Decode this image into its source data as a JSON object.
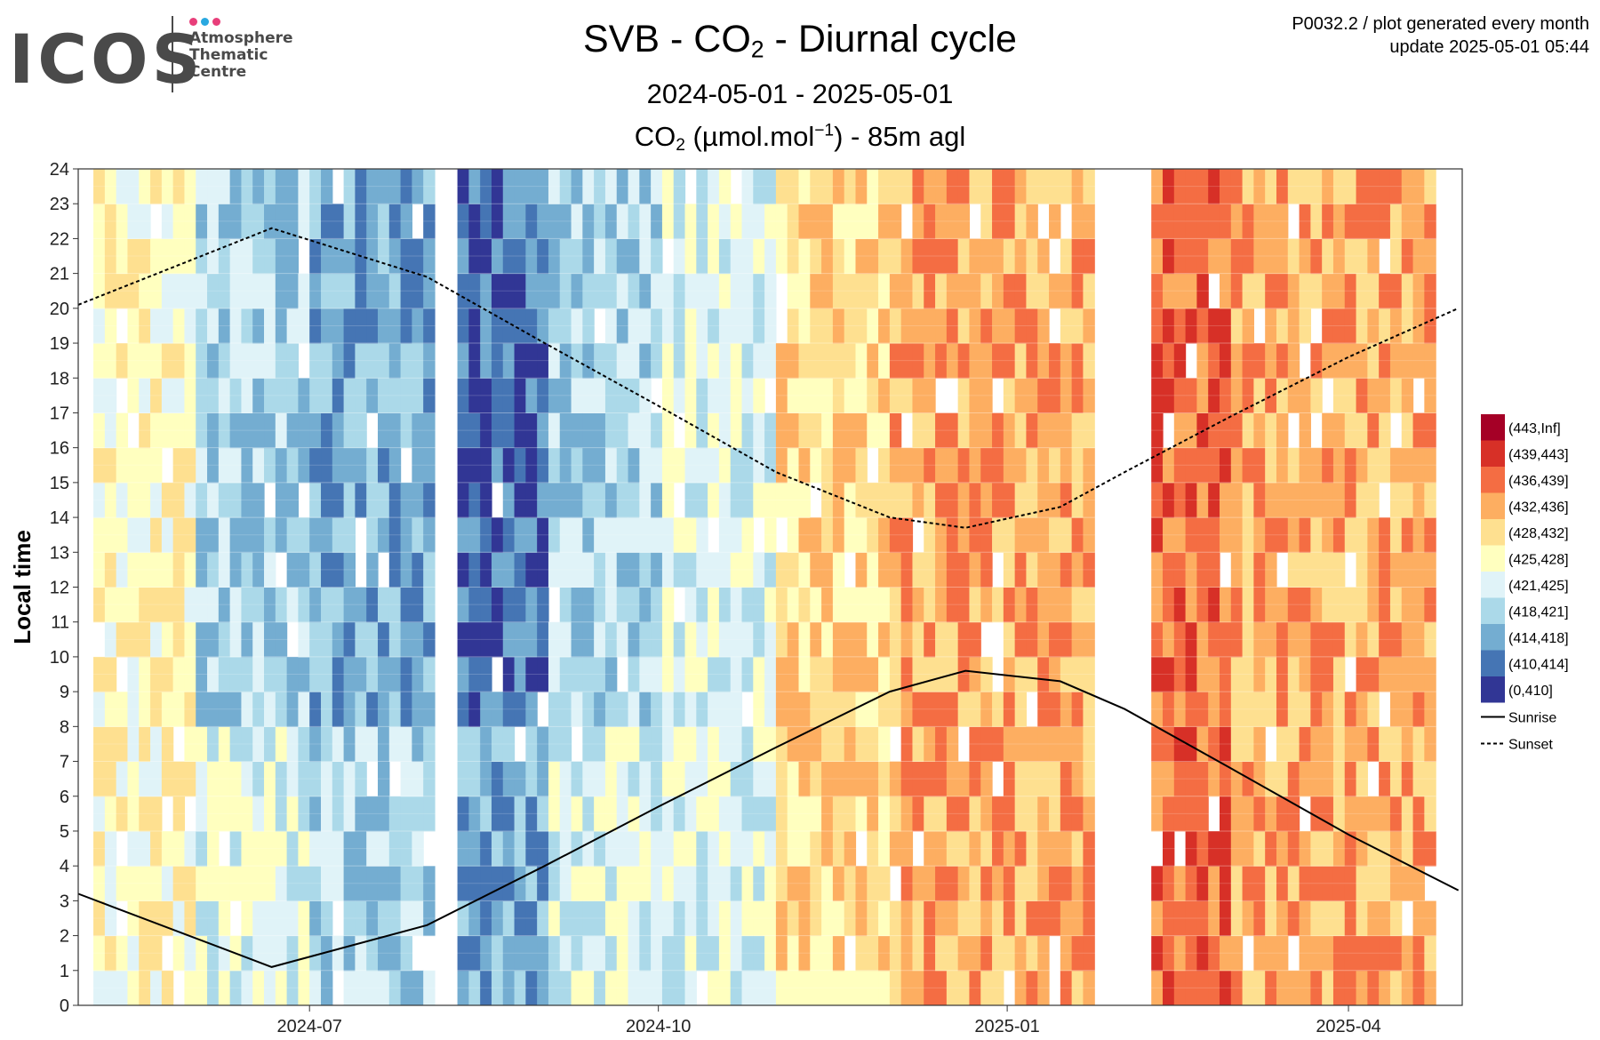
{
  "logo": {
    "word": "ICOS",
    "sub_lines": [
      "Atmosphere",
      "Thematic",
      "Centre"
    ],
    "dot_colors": [
      "#e83e7a",
      "#29a8e0",
      "#e83e7a"
    ]
  },
  "header": {
    "title_pre": "SVB - CO",
    "title_sub": "2",
    "title_post": " - Diurnal cycle",
    "date_range": "2024-05-01 - 2025-05-01",
    "series_pre": "CO",
    "series_sub": "2",
    "series_mid": " (µmol.mol",
    "series_sup": "−1",
    "series_post": ") - 85m agl",
    "meta_line1": "P0032.2 / plot generated every month",
    "meta_line2": "update  2025-05-01 05:44"
  },
  "chart_data": {
    "type": "heatmap",
    "ylabel": "Local time",
    "x_ticks": [
      "2024-07",
      "2024-10",
      "2025-01",
      "2025-04"
    ],
    "xlim": [
      "2024-05-01",
      "2025-05-01"
    ],
    "y_ticks": [
      "0",
      "1",
      "2",
      "3",
      "4",
      "5",
      "6",
      "7",
      "8",
      "9",
      "10",
      "11",
      "12",
      "13",
      "14",
      "15",
      "16",
      "17",
      "18",
      "19",
      "20",
      "21",
      "22",
      "23",
      "24"
    ],
    "ylim": [
      0,
      24
    ],
    "grid": true,
    "legend_position": "right",
    "color_bins": [
      {
        "label": "(443,Inf]",
        "color": "#a50026"
      },
      {
        "label": "(439,443]",
        "color": "#d73027"
      },
      {
        "label": "(436,439]",
        "color": "#f46d43"
      },
      {
        "label": "(432,436]",
        "color": "#fdae61"
      },
      {
        "label": "(428,432]",
        "color": "#fee090"
      },
      {
        "label": "(425,428]",
        "color": "#ffffbf"
      },
      {
        "label": "(421,425]",
        "color": "#e0f3f8"
      },
      {
        "label": "(418,421]",
        "color": "#abd9e9"
      },
      {
        "label": "(414,418]",
        "color": "#74add1"
      },
      {
        "label": "(410,414]",
        "color": "#4575b4"
      },
      {
        "label": "(0,410]",
        "color": "#313695"
      }
    ],
    "monthly_dominant_bin": [
      {
        "month": "2024-05",
        "bin": "(425,428]"
      },
      {
        "month": "2024-06",
        "bin": "(418,421]"
      },
      {
        "month": "2024-07",
        "bin": "(414,418]"
      },
      {
        "month": "2024-08",
        "bin": "(410,414]"
      },
      {
        "month": "2024-09",
        "bin": "(418,421]"
      },
      {
        "month": "2024-10",
        "bin": "(421,425]"
      },
      {
        "month": "2024-11",
        "bin": "(428,432]"
      },
      {
        "month": "2024-12",
        "bin": "(432,436]"
      },
      {
        "month": "2025-01",
        "bin": "(432,436]"
      },
      {
        "month": "2025-02",
        "bin": "(436,439]"
      },
      {
        "month": "2025-03",
        "bin": "(432,436]"
      },
      {
        "month": "2025-04",
        "bin": "(432,436]"
      }
    ],
    "lines": [
      {
        "name": "Sunrise",
        "style": "solid",
        "x": [
          "2024-05-01",
          "2024-06-21",
          "2024-08-01",
          "2024-09-01",
          "2024-10-01",
          "2024-11-01",
          "2024-12-01",
          "2024-12-21",
          "2025-01-15",
          "2025-02-01",
          "2025-03-01",
          "2025-04-01",
          "2025-04-30"
        ],
        "y": [
          3.2,
          1.1,
          2.3,
          4.0,
          5.7,
          7.4,
          9.0,
          9.6,
          9.3,
          8.5,
          6.8,
          4.9,
          3.3
        ]
      },
      {
        "name": "Sunset",
        "style": "dashed",
        "x": [
          "2024-05-01",
          "2024-06-21",
          "2024-08-01",
          "2024-09-01",
          "2024-10-01",
          "2024-11-01",
          "2024-12-01",
          "2024-12-21",
          "2025-01-15",
          "2025-02-01",
          "2025-03-01",
          "2025-04-01",
          "2025-04-30"
        ],
        "y": [
          20.1,
          22.3,
          20.9,
          19.0,
          17.2,
          15.3,
          14.0,
          13.7,
          14.3,
          15.3,
          16.9,
          18.6,
          20.0
        ]
      }
    ]
  }
}
